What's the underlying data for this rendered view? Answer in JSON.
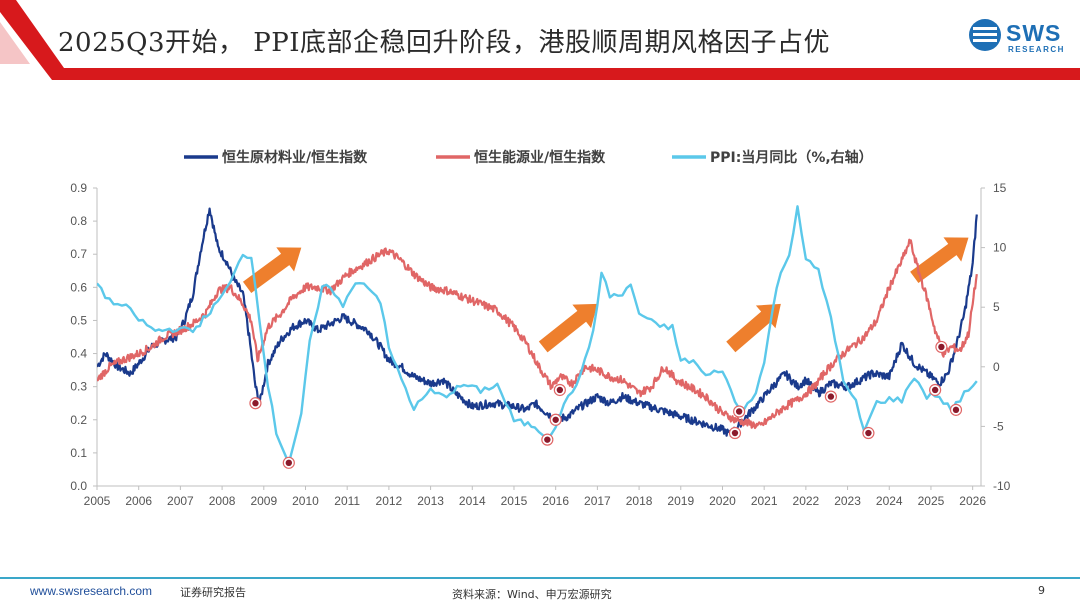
{
  "header": {
    "title": "2025Q3开始， PPI底部企稳回升阶段，港股顺周期风格因子占优",
    "logo_text": "SWS",
    "logo_sub": "RESEARCH",
    "accent_color": "#d7191c"
  },
  "chart_data": {
    "type": "line",
    "title": "",
    "xlabel": "",
    "ylabel_left": "",
    "ylabel_right": "",
    "x_ticks": [
      "2005",
      "2006",
      "2007",
      "2008",
      "2009",
      "2010",
      "2011",
      "2012",
      "2013",
      "2014",
      "2015",
      "2016",
      "2017",
      "2018",
      "2019",
      "2020",
      "2021",
      "2022",
      "2023",
      "2024",
      "2025",
      "2026"
    ],
    "x_range": [
      2005,
      2026.2
    ],
    "ylim_left": [
      0.0,
      0.9
    ],
    "ylim_right": [
      -10,
      15
    ],
    "y_ticks_left": [
      "0.9",
      "0.8",
      "0.7",
      "0.6",
      "0.5",
      "0.4",
      "0.3",
      "0.2",
      "0.1",
      "0.0"
    ],
    "y_ticks_right": [
      "15",
      "10",
      "5",
      "0",
      "-5",
      "-10"
    ],
    "legend_position": "top",
    "series": [
      {
        "name": "恒生原材料业/恒生指数",
        "axis": "left",
        "color": "#1a3a8c",
        "points": [
          [
            2005,
            0.36
          ],
          [
            2005.2,
            0.4
          ],
          [
            2005.5,
            0.36
          ],
          [
            2005.8,
            0.34
          ],
          [
            2006,
            0.37
          ],
          [
            2006.3,
            0.42
          ],
          [
            2006.6,
            0.44
          ],
          [
            2006.9,
            0.45
          ],
          [
            2007.1,
            0.5
          ],
          [
            2007.3,
            0.58
          ],
          [
            2007.5,
            0.72
          ],
          [
            2007.7,
            0.84
          ],
          [
            2007.9,
            0.72
          ],
          [
            2008.1,
            0.68
          ],
          [
            2008.3,
            0.62
          ],
          [
            2008.5,
            0.58
          ],
          [
            2008.65,
            0.45
          ],
          [
            2008.8,
            0.3
          ],
          [
            2008.9,
            0.25
          ],
          [
            2009.1,
            0.37
          ],
          [
            2009.4,
            0.44
          ],
          [
            2009.7,
            0.48
          ],
          [
            2010,
            0.5
          ],
          [
            2010.3,
            0.47
          ],
          [
            2010.6,
            0.49
          ],
          [
            2010.9,
            0.51
          ],
          [
            2011.2,
            0.49
          ],
          [
            2011.5,
            0.47
          ],
          [
            2011.8,
            0.42
          ],
          [
            2012,
            0.38
          ],
          [
            2012.3,
            0.36
          ],
          [
            2012.6,
            0.33
          ],
          [
            2013,
            0.31
          ],
          [
            2013.3,
            0.32
          ],
          [
            2013.6,
            0.28
          ],
          [
            2014,
            0.24
          ],
          [
            2014.5,
            0.25
          ],
          [
            2015,
            0.24
          ],
          [
            2015.3,
            0.23
          ],
          [
            2015.5,
            0.25
          ],
          [
            2015.8,
            0.22
          ],
          [
            2016,
            0.2
          ],
          [
            2016.3,
            0.21
          ],
          [
            2016.6,
            0.24
          ],
          [
            2017,
            0.27
          ],
          [
            2017.3,
            0.25
          ],
          [
            2017.6,
            0.27
          ],
          [
            2018,
            0.25
          ],
          [
            2018.5,
            0.23
          ],
          [
            2019,
            0.21
          ],
          [
            2019.5,
            0.19
          ],
          [
            2020,
            0.17
          ],
          [
            2020.2,
            0.155
          ],
          [
            2020.5,
            0.2
          ],
          [
            2020.8,
            0.24
          ],
          [
            2021.2,
            0.3
          ],
          [
            2021.5,
            0.34
          ],
          [
            2021.8,
            0.3
          ],
          [
            2022,
            0.32
          ],
          [
            2022.3,
            0.28
          ],
          [
            2022.6,
            0.31
          ],
          [
            2023,
            0.3
          ],
          [
            2023.3,
            0.32
          ],
          [
            2023.6,
            0.34
          ],
          [
            2024,
            0.33
          ],
          [
            2024.3,
            0.43
          ],
          [
            2024.6,
            0.37
          ],
          [
            2024.9,
            0.34
          ],
          [
            2025.2,
            0.31
          ],
          [
            2025.4,
            0.34
          ],
          [
            2025.6,
            0.42
          ],
          [
            2025.8,
            0.52
          ],
          [
            2026,
            0.67
          ],
          [
            2026.1,
            0.82
          ]
        ]
      },
      {
        "name": "恒生能源业/恒生指数",
        "axis": "left",
        "color": "#e06666",
        "points": [
          [
            2005,
            0.32
          ],
          [
            2005.3,
            0.36
          ],
          [
            2005.6,
            0.38
          ],
          [
            2006,
            0.4
          ],
          [
            2006.3,
            0.42
          ],
          [
            2006.6,
            0.45
          ],
          [
            2007,
            0.47
          ],
          [
            2007.3,
            0.49
          ],
          [
            2007.6,
            0.52
          ],
          [
            2007.9,
            0.59
          ],
          [
            2008.2,
            0.6
          ],
          [
            2008.5,
            0.55
          ],
          [
            2008.7,
            0.5
          ],
          [
            2008.85,
            0.38
          ],
          [
            2009.1,
            0.48
          ],
          [
            2009.4,
            0.52
          ],
          [
            2009.7,
            0.57
          ],
          [
            2010,
            0.6
          ],
          [
            2010.3,
            0.6
          ],
          [
            2010.6,
            0.59
          ],
          [
            2011,
            0.64
          ],
          [
            2011.4,
            0.67
          ],
          [
            2011.8,
            0.7
          ],
          [
            2012,
            0.71
          ],
          [
            2012.3,
            0.68
          ],
          [
            2012.6,
            0.64
          ],
          [
            2013,
            0.6
          ],
          [
            2013.4,
            0.59
          ],
          [
            2013.8,
            0.57
          ],
          [
            2014.2,
            0.55
          ],
          [
            2014.6,
            0.53
          ],
          [
            2015,
            0.48
          ],
          [
            2015.3,
            0.43
          ],
          [
            2015.6,
            0.36
          ],
          [
            2015.9,
            0.3
          ],
          [
            2016.1,
            0.33
          ],
          [
            2016.4,
            0.31
          ],
          [
            2016.7,
            0.36
          ],
          [
            2017,
            0.35
          ],
          [
            2017.3,
            0.33
          ],
          [
            2017.6,
            0.32
          ],
          [
            2018,
            0.28
          ],
          [
            2018.3,
            0.3
          ],
          [
            2018.6,
            0.36
          ],
          [
            2018.9,
            0.32
          ],
          [
            2019.2,
            0.3
          ],
          [
            2019.6,
            0.27
          ],
          [
            2020,
            0.22
          ],
          [
            2020.3,
            0.2
          ],
          [
            2020.6,
            0.19
          ],
          [
            2020.9,
            0.18
          ],
          [
            2021.2,
            0.21
          ],
          [
            2021.5,
            0.24
          ],
          [
            2021.8,
            0.26
          ],
          [
            2022.2,
            0.3
          ],
          [
            2022.5,
            0.35
          ],
          [
            2022.8,
            0.39
          ],
          [
            2023.1,
            0.42
          ],
          [
            2023.4,
            0.45
          ],
          [
            2023.7,
            0.5
          ],
          [
            2024,
            0.6
          ],
          [
            2024.3,
            0.68
          ],
          [
            2024.5,
            0.74
          ],
          [
            2024.7,
            0.65
          ],
          [
            2024.9,
            0.57
          ],
          [
            2025.1,
            0.47
          ],
          [
            2025.3,
            0.4
          ],
          [
            2025.5,
            0.42
          ],
          [
            2025.7,
            0.41
          ],
          [
            2025.9,
            0.46
          ],
          [
            2026.1,
            0.64
          ]
        ]
      },
      {
        "name": "PPI:当月同比（%,右轴）",
        "axis": "right",
        "color": "#5bc8ea",
        "points": [
          [
            2005,
            7
          ],
          [
            2005.3,
            5.5
          ],
          [
            2005.7,
            5
          ],
          [
            2006,
            4
          ],
          [
            2006.4,
            3
          ],
          [
            2006.9,
            3.2
          ],
          [
            2007.3,
            3
          ],
          [
            2007.8,
            5
          ],
          [
            2008.2,
            7
          ],
          [
            2008.5,
            9.5
          ],
          [
            2008.7,
            9.2
          ],
          [
            2008.9,
            4
          ],
          [
            2009.1,
            -1.5
          ],
          [
            2009.3,
            -5.5
          ],
          [
            2009.6,
            -8
          ],
          [
            2009.9,
            -4
          ],
          [
            2010.1,
            2
          ],
          [
            2010.4,
            6.5
          ],
          [
            2010.6,
            6.8
          ],
          [
            2010.9,
            5
          ],
          [
            2011.2,
            7.2
          ],
          [
            2011.5,
            6.8
          ],
          [
            2011.8,
            5.5
          ],
          [
            2012,
            1.5
          ],
          [
            2012.3,
            -1
          ],
          [
            2012.6,
            -3.5
          ],
          [
            2013,
            -2
          ],
          [
            2013.3,
            -2.5
          ],
          [
            2013.8,
            -1.5
          ],
          [
            2014.2,
            -2
          ],
          [
            2014.6,
            -1.5
          ],
          [
            2015,
            -4.5
          ],
          [
            2015.5,
            -5
          ],
          [
            2015.8,
            -5.9
          ],
          [
            2016,
            -4.9
          ],
          [
            2016.3,
            -2.5
          ],
          [
            2016.6,
            -0.8
          ],
          [
            2016.9,
            3
          ],
          [
            2017.1,
            7.8
          ],
          [
            2017.3,
            6
          ],
          [
            2017.6,
            6
          ],
          [
            2017.8,
            6.9
          ],
          [
            2018,
            4.5
          ],
          [
            2018.4,
            3.5
          ],
          [
            2018.8,
            3.3
          ],
          [
            2019,
            0.5
          ],
          [
            2019.3,
            0.5
          ],
          [
            2019.6,
            -0.8
          ],
          [
            2020,
            -0.2
          ],
          [
            2020.3,
            -3
          ],
          [
            2020.5,
            -3.7
          ],
          [
            2020.8,
            -2
          ],
          [
            2021,
            0.3
          ],
          [
            2021.3,
            6.8
          ],
          [
            2021.6,
            9.5
          ],
          [
            2021.8,
            13.5
          ],
          [
            2022,
            9
          ],
          [
            2022.3,
            8
          ],
          [
            2022.6,
            4.2
          ],
          [
            2022.9,
            -1.3
          ],
          [
            2023.2,
            -3
          ],
          [
            2023.4,
            -5.4
          ],
          [
            2023.7,
            -3
          ],
          [
            2024,
            -2.7
          ],
          [
            2024.3,
            -2.8
          ],
          [
            2024.6,
            -0.8
          ],
          [
            2024.9,
            -2.5
          ],
          [
            2025.1,
            -2.3
          ],
          [
            2025.5,
            -3.6
          ],
          [
            2025.8,
            -2.3
          ],
          [
            2026.1,
            -1.2
          ]
        ]
      }
    ],
    "troughs": [
      [
        2008.8,
        0.25
      ],
      [
        2009.6,
        0.07
      ],
      [
        2015.8,
        0.14
      ],
      [
        2016,
        0.2
      ],
      [
        2016.1,
        0.29
      ],
      [
        2020.3,
        0.16
      ],
      [
        2020.4,
        0.225
      ],
      [
        2022.6,
        0.27
      ],
      [
        2023.5,
        0.16
      ],
      [
        2025.1,
        0.29
      ],
      [
        2025.25,
        0.42
      ],
      [
        2025.6,
        0.23
      ]
    ],
    "arrows": [
      [
        2008.6,
        0.6,
        2009.9,
        0.72
      ],
      [
        2015.7,
        0.42,
        2017.0,
        0.55
      ],
      [
        2020.2,
        0.42,
        2021.4,
        0.55
      ],
      [
        2024.6,
        0.63,
        2025.9,
        0.75
      ]
    ]
  },
  "footer": {
    "url": "www.swsresearch.com",
    "label": "证券研究报告",
    "source": "资料来源：Wind、申万宏源研究",
    "page": "9"
  }
}
